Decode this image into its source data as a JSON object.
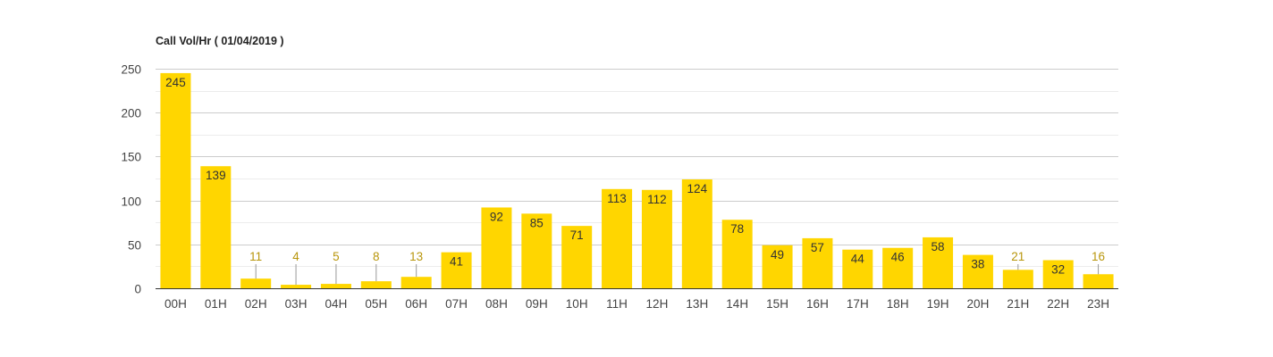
{
  "chart_data": {
    "type": "bar",
    "title": "Call Vol/Hr ( 01/04/2019 )",
    "categories": [
      "00H",
      "01H",
      "02H",
      "03H",
      "04H",
      "05H",
      "06H",
      "07H",
      "08H",
      "09H",
      "10H",
      "11H",
      "12H",
      "13H",
      "14H",
      "15H",
      "16H",
      "17H",
      "18H",
      "19H",
      "20H",
      "21H",
      "22H",
      "23H"
    ],
    "values": [
      245,
      139,
      11,
      4,
      5,
      8,
      13,
      41,
      92,
      85,
      71,
      113,
      112,
      124,
      78,
      49,
      57,
      44,
      46,
      58,
      38,
      21,
      32,
      16
    ],
    "ylim": [
      0,
      250
    ],
    "yticks": [
      0,
      50,
      100,
      150,
      200,
      250
    ],
    "xlabel": "",
    "ylabel": "",
    "grid": true,
    "bar_color": "#FFD600",
    "label_inside_color": "#333333",
    "label_outside_color": "#B8960C"
  }
}
